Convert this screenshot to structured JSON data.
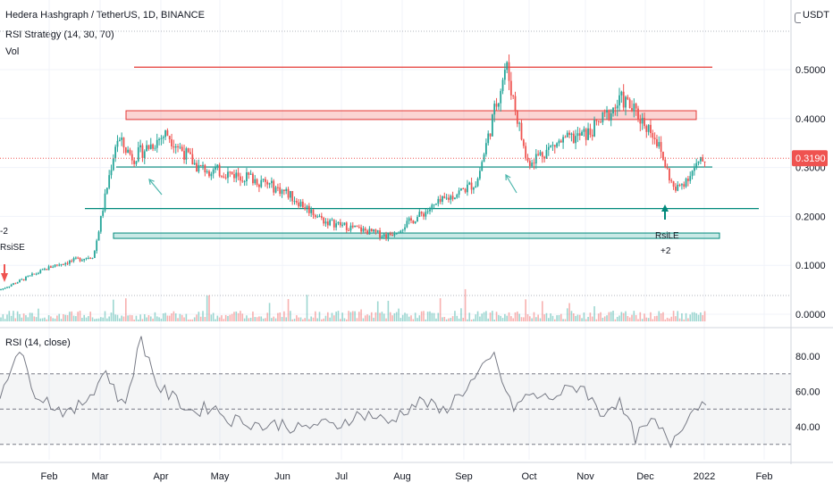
{
  "header": {
    "title": "Hedera Hashgraph / TetherUS, 1D, BINANCE",
    "strategy": "RSI Strategy (14, 30, 70)",
    "volume_label": "Vol",
    "currency": "USDT"
  },
  "rsi_panel": {
    "label": "RSI (14, close)",
    "y_ticks": [
      "80.00",
      "60.00",
      "40.00"
    ]
  },
  "signals": {
    "left_entry_label": "RsiSE",
    "left_count": "-2",
    "right_entry_label": "RsiLE",
    "right_count": "+2"
  },
  "colors": {
    "up": "#26a69a",
    "down": "#ef5350",
    "price_tag": "#ef5350",
    "resistance": "#e53935",
    "support": "#00897b",
    "rsi_line": "#787b86",
    "arrow": "#26a69a"
  },
  "chart_data": [
    {
      "type": "candlestick",
      "title": "Hedera Hashgraph / TetherUS, 1D, BINANCE",
      "ylabel": "USDT",
      "y_ticks": [
        "0.5000",
        "0.4000",
        "0.3000",
        "0.2000",
        "0.1000",
        "0.0000"
      ],
      "x_ticks": [
        "Feb",
        "Mar",
        "Apr",
        "May",
        "Jun",
        "Jul",
        "Aug",
        "Sep",
        "Oct",
        "Nov",
        "Dec",
        "2022",
        "Feb"
      ],
      "ylim": [
        0,
        0.58
      ],
      "last_price": "0.3190",
      "horizontal_lines": [
        {
          "kind": "resistance",
          "value": 0.505
        },
        {
          "kind": "resistance-zone",
          "value_low": 0.398,
          "value_high": 0.416
        },
        {
          "kind": "support",
          "value": 0.301
        },
        {
          "kind": "support",
          "value": 0.216
        },
        {
          "kind": "support-zone",
          "value_low": 0.155,
          "value_high": 0.166
        }
      ],
      "approx_close_path": [
        {
          "date": "2021-01-15",
          "close": 0.05
        },
        {
          "date": "2021-02-10",
          "close": 0.1
        },
        {
          "date": "2021-03-01",
          "close": 0.12
        },
        {
          "date": "2021-03-12",
          "close": 0.36
        },
        {
          "date": "2021-03-20",
          "close": 0.32
        },
        {
          "date": "2021-04-05",
          "close": 0.37
        },
        {
          "date": "2021-04-20",
          "close": 0.3
        },
        {
          "date": "2021-05-15",
          "close": 0.28
        },
        {
          "date": "2021-06-01",
          "close": 0.25
        },
        {
          "date": "2021-06-20",
          "close": 0.19
        },
        {
          "date": "2021-07-10",
          "close": 0.17
        },
        {
          "date": "2021-07-20",
          "close": 0.16
        },
        {
          "date": "2021-08-15",
          "close": 0.23
        },
        {
          "date": "2021-09-01",
          "close": 0.27
        },
        {
          "date": "2021-09-15",
          "close": 0.51
        },
        {
          "date": "2021-09-25",
          "close": 0.31
        },
        {
          "date": "2021-10-10",
          "close": 0.35
        },
        {
          "date": "2021-10-25",
          "close": 0.37
        },
        {
          "date": "2021-11-10",
          "close": 0.44
        },
        {
          "date": "2021-11-25",
          "close": 0.37
        },
        {
          "date": "2021-12-05",
          "close": 0.25
        },
        {
          "date": "2021-12-15",
          "close": 0.3
        },
        {
          "date": "2021-12-20",
          "close": 0.319
        }
      ]
    },
    {
      "type": "line",
      "title": "RSI (14, close)",
      "ylim": [
        20,
        95
      ],
      "bands": [
        30,
        50,
        70
      ],
      "y_ticks": [
        "80.00",
        "60.00",
        "40.00"
      ],
      "series": [
        {
          "values": [
            58,
            85,
            60,
            52,
            47,
            57,
            72,
            50,
            90,
            62,
            55,
            48,
            52,
            44,
            43,
            40,
            42,
            38,
            42,
            40,
            46,
            47,
            42,
            50,
            55,
            48,
            58,
            68,
            80,
            50,
            58,
            56,
            60,
            64,
            47,
            55,
            34,
            43,
            31,
            47,
            56
          ]
        }
      ]
    }
  ]
}
